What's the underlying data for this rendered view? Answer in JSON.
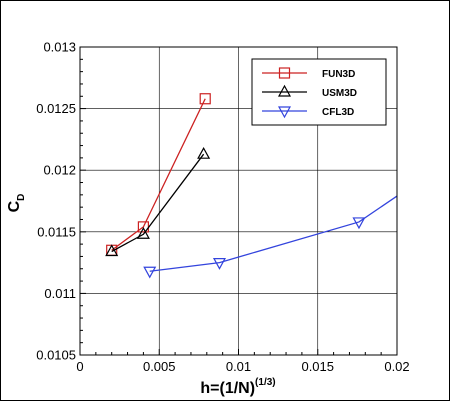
{
  "chart_data": {
    "type": "line",
    "title": "",
    "xlabel": {
      "main": "h=(1/N)",
      "sup": "(1/3)"
    },
    "ylabel": {
      "main": "C",
      "sub": "D"
    },
    "xlim": [
      0,
      0.02
    ],
    "ylim": [
      0.0105,
      0.013
    ],
    "x_ticks": [
      0,
      0.005,
      0.01,
      0.015,
      0.02
    ],
    "x_tick_labels": [
      "0",
      "0.005",
      "0.01",
      "0.015",
      "0.02"
    ],
    "y_ticks": [
      0.0105,
      0.011,
      0.0115,
      0.012,
      0.0125,
      0.013
    ],
    "y_tick_labels": [
      "0.0105",
      "0.011",
      "0.0115",
      "0.012",
      "0.0125",
      "0.013"
    ],
    "grid": true,
    "legend_position": "top-right",
    "series": [
      {
        "name": "FUN3D",
        "color": "#cc2222",
        "marker": "square",
        "x": [
          0.002,
          0.004,
          0.0079
        ],
        "y": [
          0.01135,
          0.01154,
          0.01258
        ]
      },
      {
        "name": "USM3D",
        "color": "#000000",
        "marker": "triangle-up",
        "x": [
          0.002,
          0.004,
          0.0078
        ],
        "y": [
          0.01134,
          0.01148,
          0.01213
        ]
      },
      {
        "name": "CFL3D",
        "color": "#3344dd",
        "marker": "triangle-down",
        "x": [
          0.0044,
          0.0088,
          0.0176,
          0.02
        ],
        "y": [
          0.01118,
          0.01125,
          0.01158,
          0.01179
        ]
      }
    ]
  }
}
